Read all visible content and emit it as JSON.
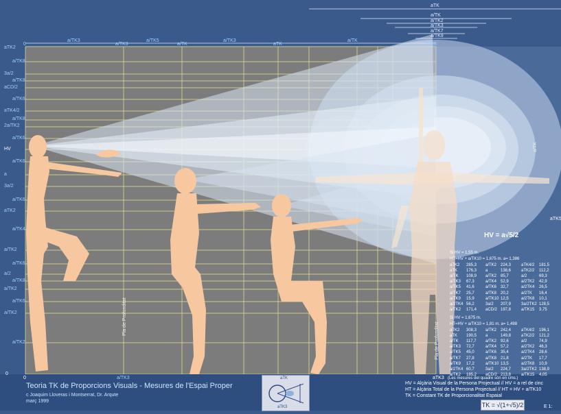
{
  "title": "Teoria TK de Proporcions Visuals - Mesures de l'Espai Proper",
  "authors": "c Joaquim Lloveras i Montserrat, Dr. Arqute",
  "date": "març 1999",
  "top_scale_labels": [
    "aTK",
    "a/TK",
    "a/TK2",
    "a/TK3",
    "a/TK7",
    "a/TK9"
  ],
  "top_axis_labels": [
    "a/TK3",
    "a/TK3",
    "a/TK5",
    "a/TK",
    "a/TK3",
    "aTK",
    "a/TK",
    "aTK3"
  ],
  "left_axis_labels": [
    "aTK2",
    "a/TK8",
    "3a/2",
    "a/TK8",
    "aCD/2",
    "a/TK6",
    "aTK4/2",
    "a/TK8",
    "2a/TK2",
    "a/TK6",
    "HV",
    "a/TK6",
    "a",
    "3a/2",
    "a/TK6",
    "aTK2",
    "a/TK4",
    "a/TK2",
    "a/TK6",
    "a/2",
    "a/TK8",
    "a/TK2",
    "a/TK6",
    "a/TK2",
    "a/TK2"
  ],
  "bottom_axis_labels": [
    "0",
    "a/TK3",
    "aTK3"
  ],
  "zero_label": "0",
  "right_labels": {
    "atk_mid": "a/TK",
    "atk5": "aTK5"
  },
  "vertical_labels": {
    "plane1": "Pla de Profunditat",
    "plane2": "Pla de Profunditat"
  },
  "hv_formula": "HV = a√5/2",
  "table1": {
    "header": "Si HV = 1,55 m.",
    "header2": "HT=HV + a/TK10 = 1,675 m.  a= 1,386",
    "rows": [
      [
        "aTK2",
        "285,3",
        "a/TK2",
        "224,3",
        "aTK4/2",
        "181,5"
      ],
      [
        "aTK",
        "176,3",
        "a",
        "138,6",
        "aTK2/2",
        "112,2"
      ],
      [
        "a/TK",
        "108,9",
        "a/TK2",
        "85,7",
        "a/2",
        "69,3"
      ],
      [
        "a/TK3",
        "67,3",
        "a/TK4",
        "52,9",
        "a/2TK2",
        "42,9"
      ],
      [
        "a/TK5",
        "41,6",
        "a/TK6",
        "32,7",
        "a/2TK4",
        "26,5"
      ],
      [
        "a/TK7",
        "25,7",
        "a/TK8",
        "20,2",
        "a/2TK",
        "16,4"
      ],
      [
        "a/TK9",
        "15,9",
        "a/TK10",
        "12,5",
        "a/2TK8",
        "10,1"
      ],
      [
        "a/2TK4",
        "56,2",
        "3a/2",
        "207,9",
        "3a/2TK2",
        "128,5"
      ],
      [
        "a/TK2",
        "171,4",
        "aCD/2",
        "197,8",
        "a/TK15",
        "3,75"
      ]
    ]
  },
  "table2": {
    "header": "Si HV = 1,675 m.",
    "header2": "HT=HV + a/TK10 = 1,81 m.  a= 1,498",
    "rows": [
      [
        "aTK2",
        "308,3",
        "a/TK2",
        "242,4",
        "aTK4/2",
        "196,1"
      ],
      [
        "aTK",
        "190,5",
        "a",
        "149,8",
        "aTK2/2",
        "121,2"
      ],
      [
        "a/TK",
        "117,7",
        "a/TK2",
        "92,6",
        "a/2",
        "74,9"
      ],
      [
        "a/TK3",
        "72,7",
        "a/TK4",
        "57,2",
        "a/2TK2",
        "46,3"
      ],
      [
        "a/TK5",
        "45,0",
        "a/TK6",
        "35,4",
        "a/2TK4",
        "28,6"
      ],
      [
        "a/TK7",
        "27,8",
        "a/TK8",
        "21,8",
        "a/2TK",
        "17,7"
      ],
      [
        "a/TK9",
        "17,2",
        "a/TK10",
        "13,5",
        "a/2TK8",
        "10,9"
      ],
      [
        "a/2TK4",
        "60,7",
        "3a/2",
        "224,7",
        "3a/2TK2",
        "138,9"
      ],
      [
        "a/TK2",
        "185,2",
        "aCD/2",
        "213,8",
        "a/TK15",
        "4,05"
      ]
    ]
  },
  "note": "(Les mesures del quadre són en cms.)",
  "definitions": [
    "HV = Alçària Visual de la Persona Projectual // HV = a rel de cinc",
    "HT = Alçària Total de la Persona Projectual // HT = HV + a/TK10",
    "TK = Constant TK de Proporcionalitat Espaial"
  ],
  "tk_formula": "TK = √(1+√5)/2",
  "scale_label": "E 1:",
  "thumb_labels": {
    "top": "aTK",
    "bottom": "aTK3"
  },
  "colors": {
    "background": "#3a5a8c",
    "panel": "#7a7a7a",
    "grid": "#e8e890",
    "figure": "#f7c8a0",
    "cone": "#dbe6f5",
    "label": "#9fd0ff"
  }
}
